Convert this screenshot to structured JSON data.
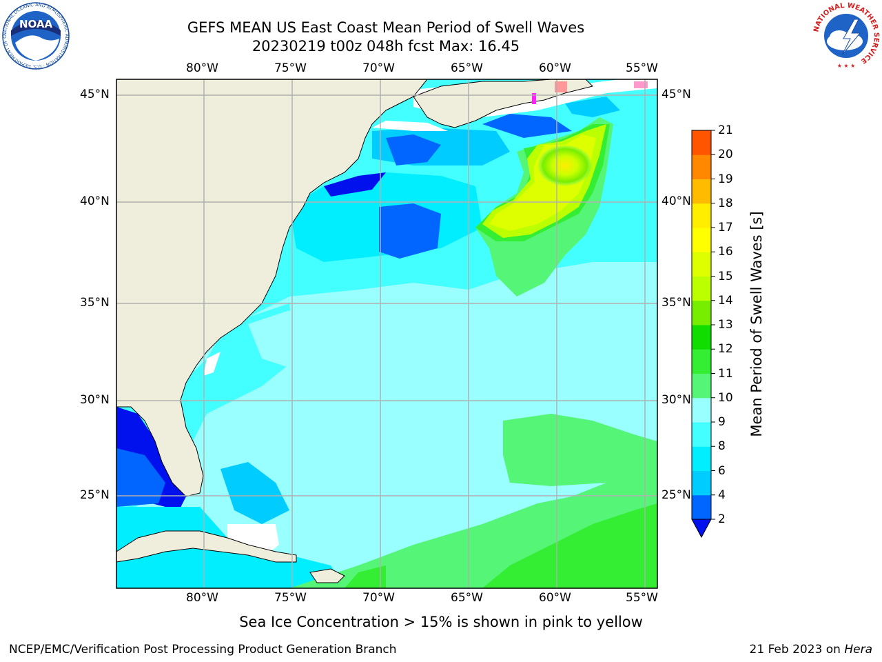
{
  "header": {
    "title_line1": "GEFS MEAN US East Coast Mean Period of Swell Waves",
    "title_line2": "20230219 t00z 048h fcst   Max: 16.45",
    "noaa_logo_text": "NOAA",
    "noaa_ring_text": "NATIONAL OCEANIC AND ATMOSPHERIC ADMINISTRATION · U.S. DEPARTMENT OF COMMERCE",
    "nws_ring_text": "NATIONAL WEATHER SERVICE"
  },
  "map": {
    "lon_labels": [
      "80°W",
      "75°W",
      "70°W",
      "65°W",
      "60°W",
      "55°W"
    ],
    "lat_labels": [
      "45°N",
      "40°N",
      "35°N",
      "30°N",
      "25°N"
    ],
    "land_color": "#efeedd",
    "gridline_color": "#b0b0b0"
  },
  "colorbar": {
    "title": "Mean Period of Swell Waves [s]",
    "ticks": [
      "2",
      "4",
      "6",
      "8",
      "9",
      "10",
      "11",
      "12",
      "13",
      "14",
      "15",
      "16",
      "17",
      "18",
      "19",
      "20",
      "21"
    ],
    "colors": [
      "#0066ff",
      "#00ccff",
      "#00eeff",
      "#44ffff",
      "#99ffff",
      "#55f577",
      "#33ee33",
      "#11dd00",
      "#77ee00",
      "#bbff00",
      "#ddff00",
      "#ffff00",
      "#ffee00",
      "#ffbb00",
      "#ff8800",
      "#ff5500",
      "#ff2200",
      "#ff0000"
    ],
    "extend_color": "#0011ee"
  },
  "caption": "Sea Ice Concentration > 15% is shown in pink to yellow",
  "footer": {
    "left": "NCEP/EMC/Verification Post Processing Product Generation Branch",
    "right_date": "21 Feb 2023 on ",
    "right_host": "Hera"
  }
}
